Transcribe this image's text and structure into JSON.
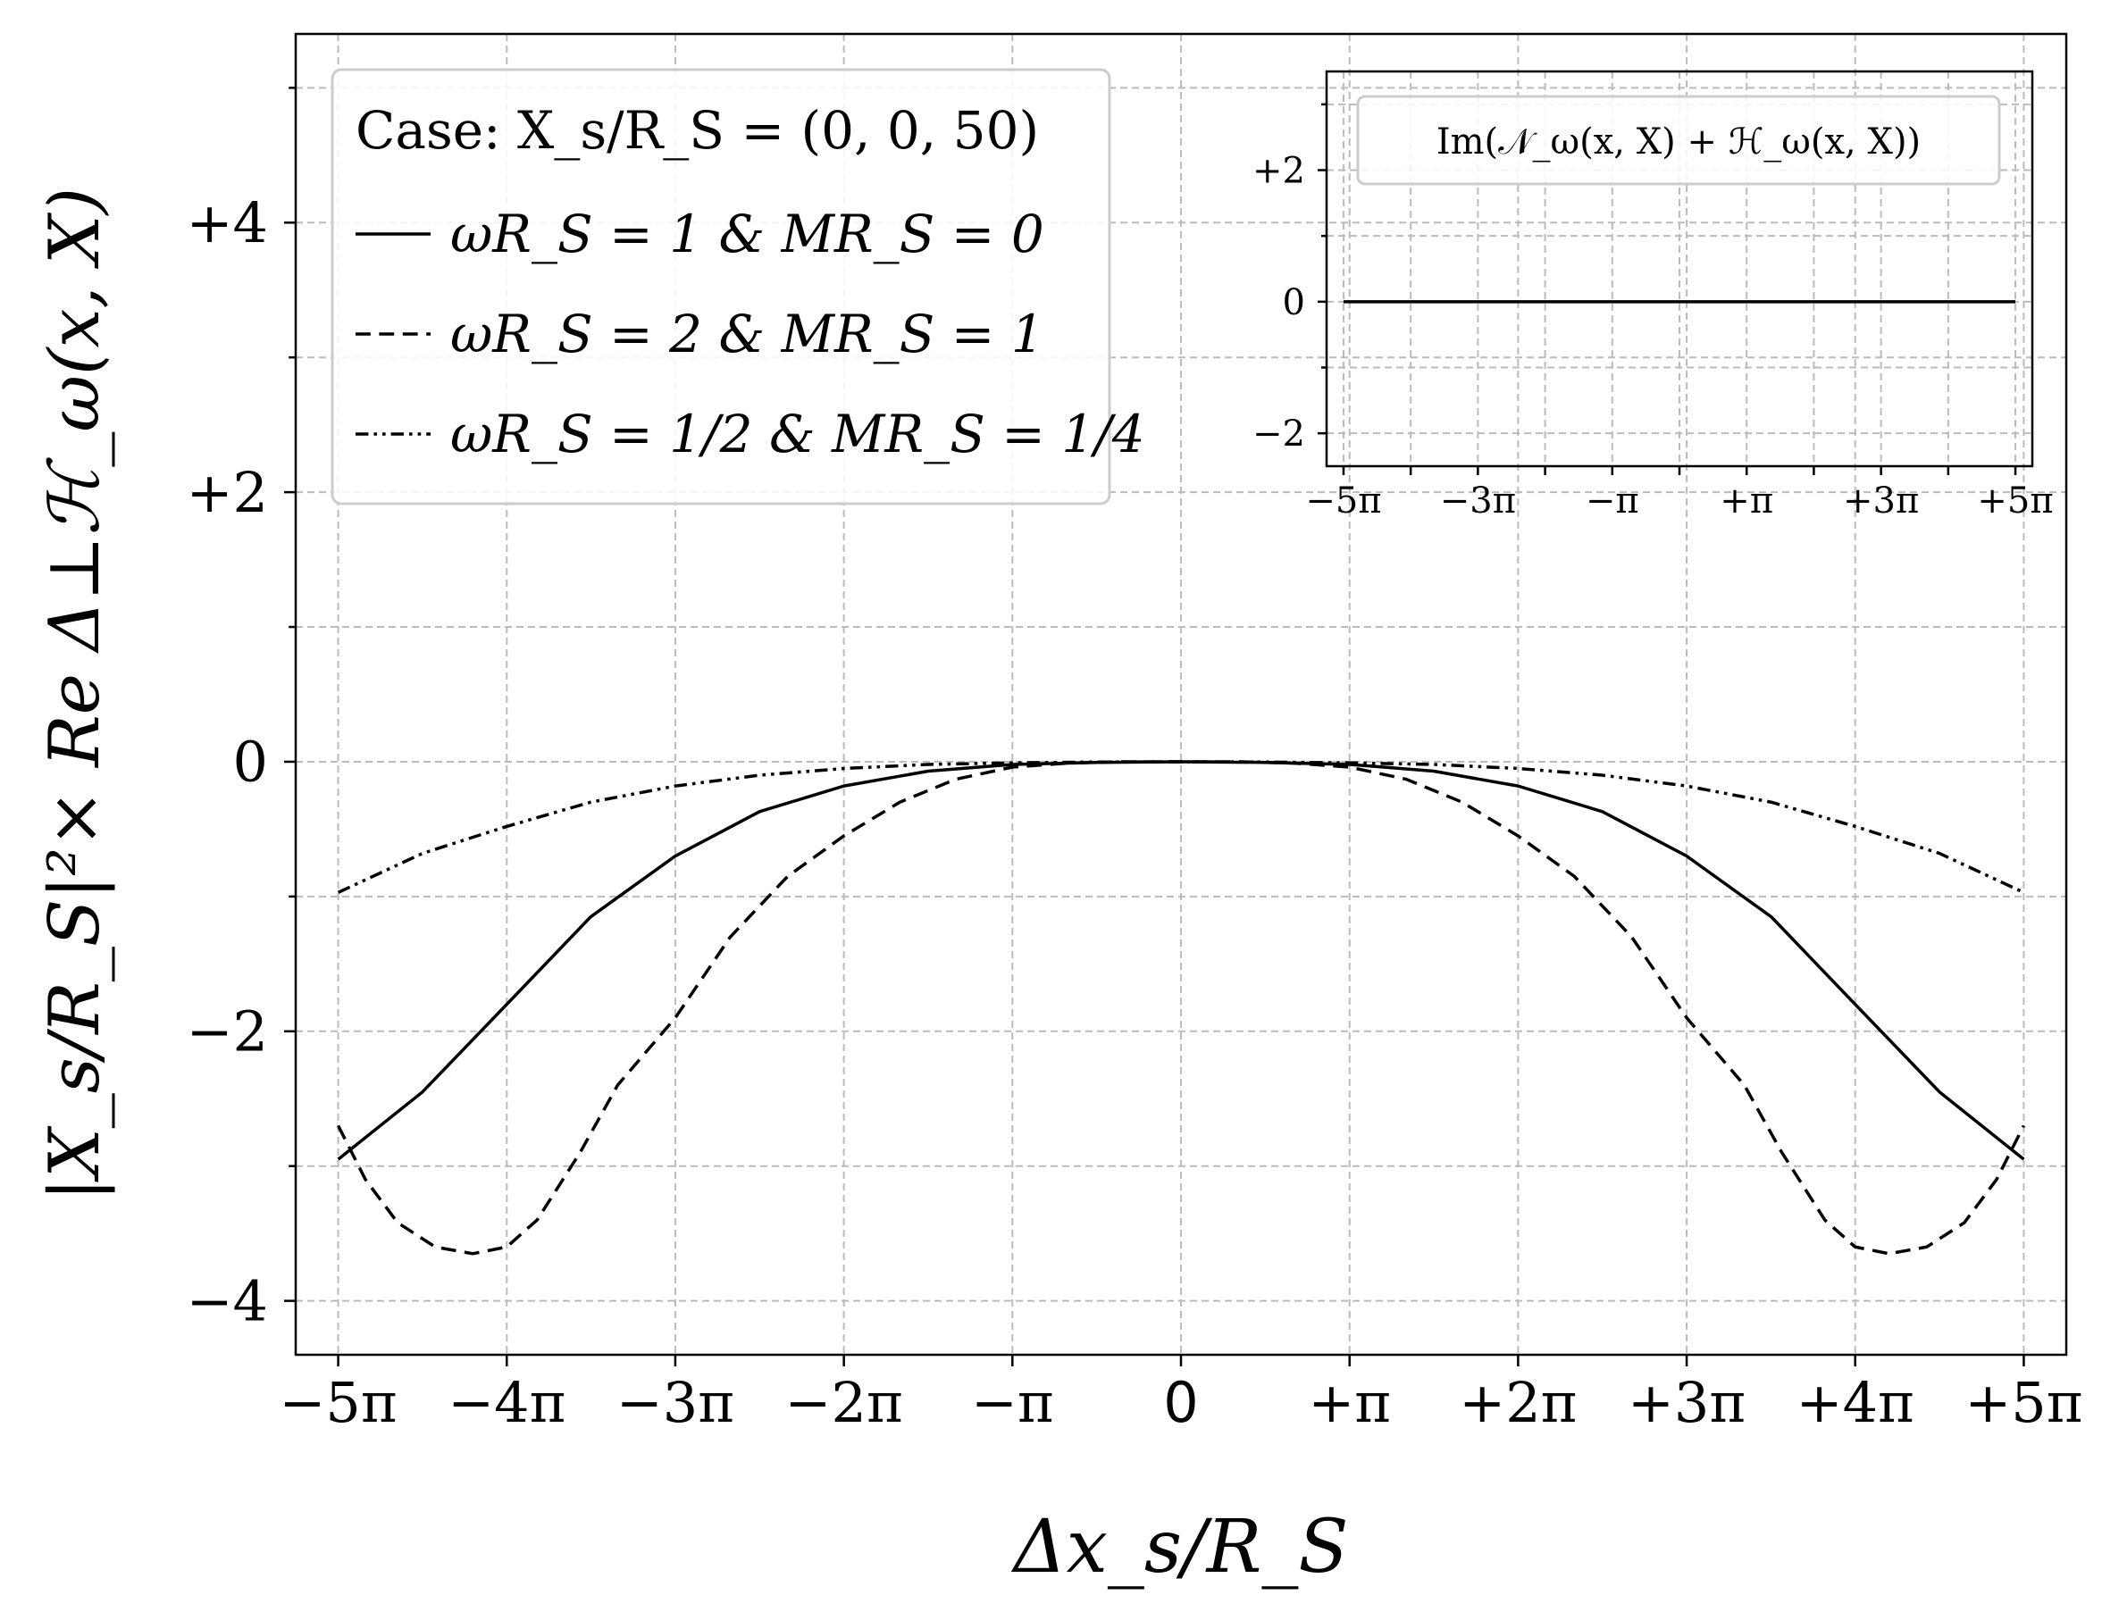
{
  "chart_data": [
    {
      "type": "line",
      "xlabel": "Δx_s/R_S",
      "ylabel": "|X_s/R_S|²× Re Δ⊥ℋ_ω(x, X)",
      "xlim": [
        -16.5,
        16.5
      ],
      "ylim": [
        -4.4,
        5.4
      ],
      "xticks": [
        {
          "value": -15.708,
          "label": "−5π"
        },
        {
          "value": -12.566,
          "label": "−4π"
        },
        {
          "value": -9.425,
          "label": "−3π"
        },
        {
          "value": -6.283,
          "label": "−2π"
        },
        {
          "value": -3.142,
          "label": "−π"
        },
        {
          "value": 0,
          "label": "0"
        },
        {
          "value": 3.142,
          "label": "+π"
        },
        {
          "value": 6.283,
          "label": "+2π"
        },
        {
          "value": 9.425,
          "label": "+3π"
        },
        {
          "value": 12.566,
          "label": "+4π"
        },
        {
          "value": 15.708,
          "label": "+5π"
        }
      ],
      "yticks": [
        {
          "value": -4,
          "label": "−4"
        },
        {
          "value": -2,
          "label": "−2"
        },
        {
          "value": 0,
          "label": "0"
        },
        {
          "value": 2,
          "label": "+2"
        },
        {
          "value": 4,
          "label": "+4"
        }
      ],
      "grid": true,
      "legend_placement": "top-left",
      "legend_title": "Case: X_s/R_S = (0, 0, 50)",
      "series": [
        {
          "name": "ωR_S = 1 & MR_S = 0",
          "style": "solid",
          "x": [
            -15.708,
            -14.137,
            -12.566,
            -11.0,
            -9.425,
            -7.854,
            -6.283,
            -4.712,
            -3.142,
            -1.571,
            0,
            1.571,
            3.142,
            4.712,
            6.283,
            7.854,
            9.425,
            11.0,
            12.566,
            14.137,
            15.708
          ],
          "y": [
            -2.95,
            -2.45,
            -1.8,
            -1.15,
            -0.7,
            -0.37,
            -0.18,
            -0.07,
            -0.02,
            -0.005,
            0,
            -0.005,
            -0.02,
            -0.07,
            -0.18,
            -0.37,
            -0.7,
            -1.15,
            -1.8,
            -2.45,
            -2.95
          ]
        },
        {
          "name": "ωR_S = 2 & MR_S = 1",
          "style": "dashed",
          "x": [
            -15.708,
            -15.2,
            -14.6,
            -13.9,
            -13.2,
            -12.566,
            -12.0,
            -11.2,
            -10.5,
            -9.425,
            -8.4,
            -7.33,
            -6.283,
            -5.24,
            -4.2,
            -3.142,
            -2.1,
            -1.05,
            0,
            1.05,
            2.1,
            3.142,
            4.2,
            5.24,
            6.283,
            7.33,
            8.4,
            9.425,
            10.5,
            11.2,
            12.0,
            12.566,
            13.2,
            13.9,
            14.6,
            15.2,
            15.708
          ],
          "y": [
            -2.7,
            -3.1,
            -3.42,
            -3.6,
            -3.65,
            -3.6,
            -3.4,
            -2.9,
            -2.4,
            -1.9,
            -1.3,
            -0.85,
            -0.55,
            -0.3,
            -0.13,
            -0.04,
            -0.01,
            0,
            0,
            0,
            -0.01,
            -0.04,
            -0.13,
            -0.3,
            -0.55,
            -0.85,
            -1.3,
            -1.9,
            -2.4,
            -2.9,
            -3.4,
            -3.6,
            -3.65,
            -3.6,
            -3.42,
            -3.1,
            -2.7
          ]
        },
        {
          "name": "ωR_S = 1/2 & MR_S = 1/4",
          "style": "dashdotdot",
          "x": [
            -15.708,
            -14.137,
            -12.566,
            -11.0,
            -9.425,
            -7.854,
            -6.283,
            -4.712,
            -3.142,
            -1.571,
            0,
            1.571,
            3.142,
            4.712,
            6.283,
            7.854,
            9.425,
            11.0,
            12.566,
            14.137,
            15.708
          ],
          "y": [
            -0.97,
            -0.68,
            -0.48,
            -0.3,
            -0.18,
            -0.1,
            -0.05,
            -0.02,
            -0.008,
            -0.002,
            0,
            -0.002,
            -0.008,
            -0.02,
            -0.05,
            -0.1,
            -0.18,
            -0.3,
            -0.48,
            -0.68,
            -0.97
          ]
        }
      ]
    },
    {
      "type": "line",
      "placement": "inset, top-right",
      "legend_title": "Im(𝒩_ω(x, X) + ℋ_ω(x, X))",
      "xlim": [
        -16.5,
        16.5
      ],
      "ylim": [
        -2.5,
        3.5
      ],
      "xticks": [
        {
          "value": -15.708,
          "label": "−5π"
        },
        {
          "value": -9.425,
          "label": "−3π"
        },
        {
          "value": -3.142,
          "label": "−π"
        },
        {
          "value": 3.142,
          "label": "+π"
        },
        {
          "value": 9.425,
          "label": "+3π"
        },
        {
          "value": 15.708,
          "label": "+5π"
        }
      ],
      "yticks": [
        {
          "value": -2,
          "label": "−2"
        },
        {
          "value": 0,
          "label": "0"
        },
        {
          "value": 2,
          "label": "+2"
        }
      ],
      "grid": true,
      "series": [
        {
          "style": "solid",
          "x": [
            -15.708,
            15.708
          ],
          "y": [
            0,
            0
          ]
        }
      ]
    }
  ]
}
